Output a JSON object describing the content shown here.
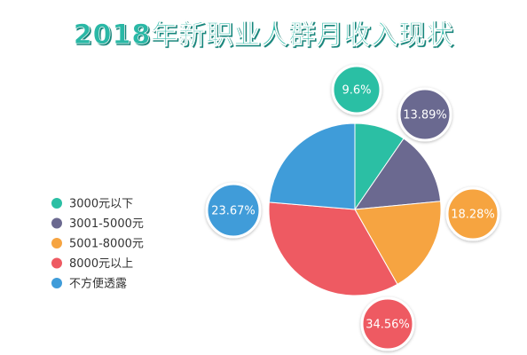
{
  "chart_data": {
    "type": "pie",
    "title": "2018年新职业人群月收入现状",
    "categories": [
      "3000元以下",
      "3001-5000元",
      "5001-8000元",
      "8000元以上",
      "不方便透露"
    ],
    "values": [
      9.6,
      13.89,
      18.28,
      34.56,
      23.67
    ],
    "data_labels": [
      "9.6%",
      "13.89%",
      "18.28%",
      "34.56%",
      "23.67%"
    ],
    "colors": [
      "#2bbfa4",
      "#6b6990",
      "#f6a441",
      "#ee5a62",
      "#3f9cd9"
    ],
    "title_color": "#2bb8a6",
    "legend": "left",
    "unit": "%"
  }
}
